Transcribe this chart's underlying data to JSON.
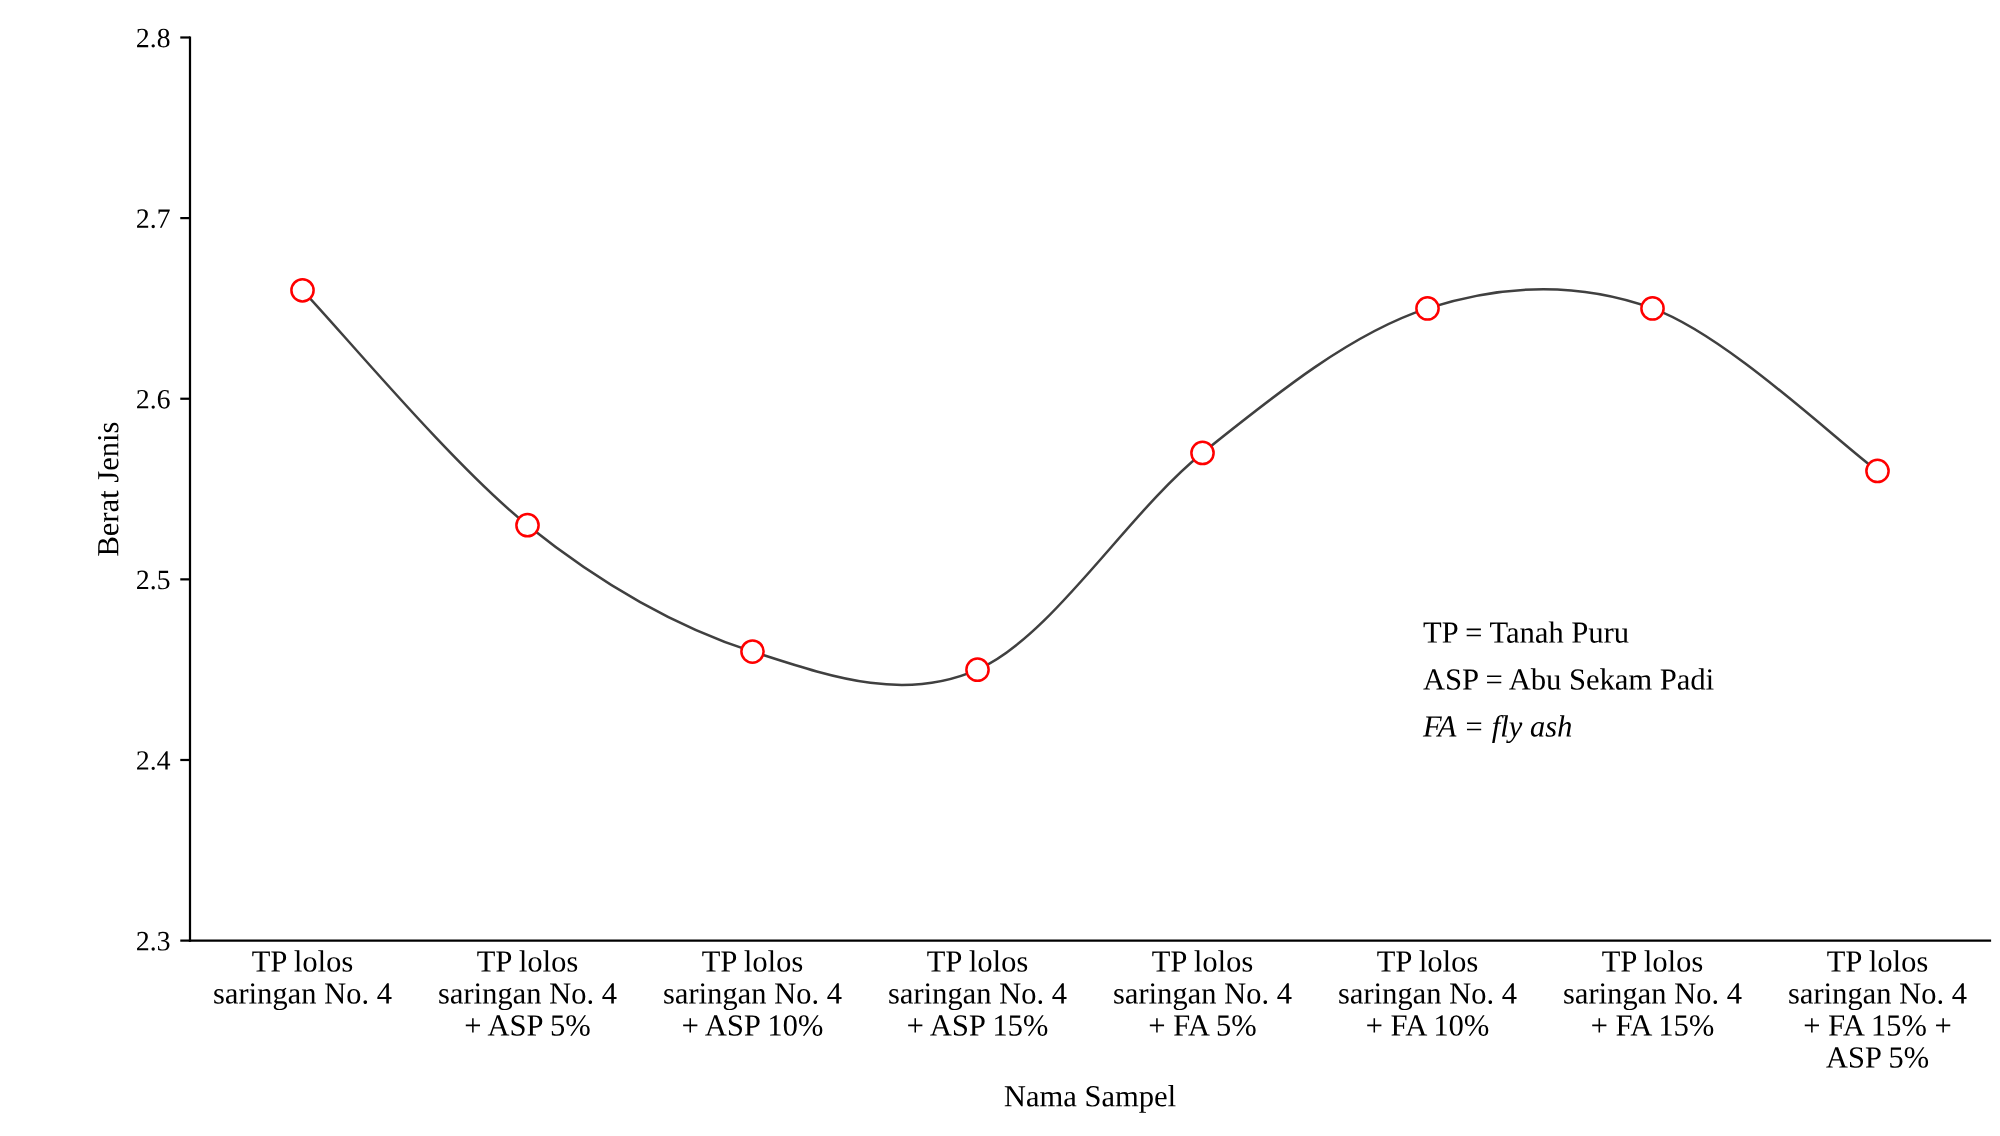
{
  "chart_data": {
    "type": "line",
    "xlabel": "Nama Sampel",
    "ylabel": "Berat Jenis",
    "categories": [
      "TP lolos\nsaringan No. 4",
      "TP lolos\nsaringan No. 4\n+ ASP 5%",
      "TP lolos\nsaringan No. 4\n+ ASP 10%",
      "TP lolos\nsaringan No. 4\n+ ASP 15%",
      "TP lolos\nsaringan No. 4\n+ FA 5%",
      "TP lolos\nsaringan No. 4\n+ FA 10%",
      "TP lolos\nsaringan No. 4\n+ FA 15%",
      "TP lolos\nsaringan No. 4\n+ FA 15% +\nASP 5%"
    ],
    "series": [
      {
        "color": "#404040",
        "values": [
          2.66,
          2.53,
          2.46,
          2.45,
          2.57,
          2.65,
          2.65,
          2.56
        ]
      }
    ],
    "marker": "circle",
    "line_style": "solid",
    "grid": false,
    "legend": false,
    "ylim": [
      2.3,
      2.8
    ],
    "yticks": [
      2.3,
      2.4,
      2.5,
      2.6,
      2.7,
      2.8
    ],
    "annotations": [
      "TP = Tanah Puru",
      "ASP = Abu Sekam Padi",
      "FA = fly ash"
    ]
  }
}
